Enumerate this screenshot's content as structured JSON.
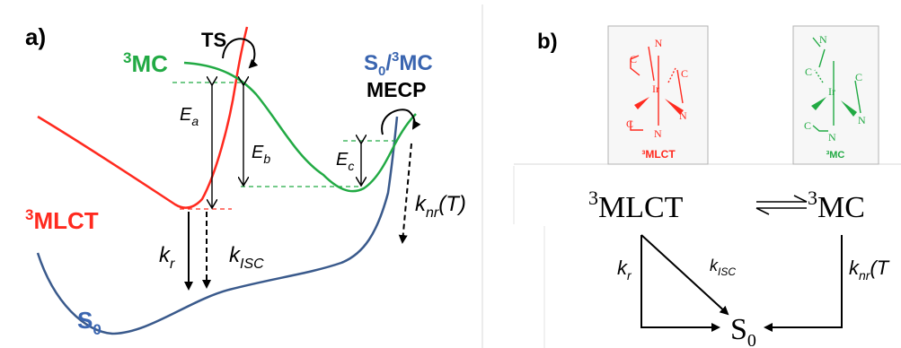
{
  "panel_a": {
    "label": "a)",
    "ts_label": "TS",
    "mc_label": {
      "sup": "3",
      "main": "MC"
    },
    "mlct_label": {
      "sup": "3",
      "main": "MLCT"
    },
    "s0_label": {
      "main": "S",
      "sub": "0"
    },
    "mecp_top": {
      "s": "S",
      "sub": "0",
      "slash": "/",
      "sup": "3",
      "main": "MC"
    },
    "mecp_label": "MECP",
    "ea": {
      "main": "E",
      "sub": "a"
    },
    "eb": {
      "main": "E",
      "sub": "b"
    },
    "ec": {
      "main": "E",
      "sub": "c"
    },
    "kr": {
      "main": "k",
      "sub": "r"
    },
    "kisc": {
      "main": "k",
      "sub": "ISC"
    },
    "knr": {
      "main": "k",
      "sub": "nr",
      "tail": "(T)"
    },
    "colors": {
      "mlct": "#ff2a1f",
      "mc": "#22aa44",
      "s0": "#3a5a8c",
      "text_blue": "#3a65b0",
      "black": "#000000"
    }
  },
  "panel_b": {
    "label": "b)",
    "mlct_caption": "³MLCT",
    "mc_caption": "³MC",
    "atoms": {
      "c": "C",
      "n": "N",
      "ir": "Ir"
    },
    "equilibrium": {
      "left_sup": "3",
      "left": "MLCT",
      "right_sup": "3",
      "right": "MC"
    },
    "ground": {
      "main": "S",
      "sub": "0"
    },
    "kr": {
      "main": "k",
      "sub": "r"
    },
    "kisc": {
      "main": "k",
      "sub": "ISC"
    },
    "knr": {
      "main": "k",
      "sub": "nr",
      "tail": "(T"
    }
  }
}
